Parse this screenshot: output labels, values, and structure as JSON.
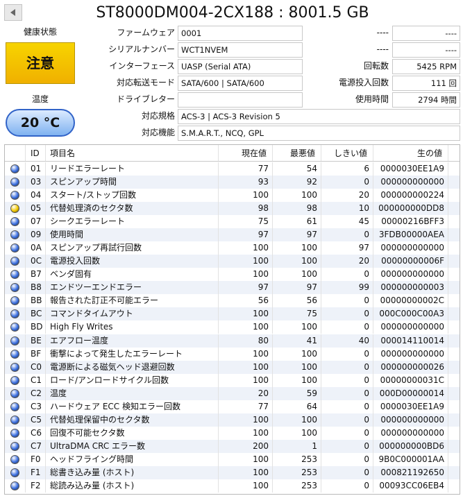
{
  "title": "ST8000DM004-2CX188 : 8001.5 GB",
  "health": {
    "label": "健康状態",
    "status": "注意",
    "color": "#f7d400"
  },
  "temperature": {
    "label": "温度",
    "value": "20 °C",
    "color": "#7fb2f0"
  },
  "info": [
    {
      "label": "ファームウェア",
      "value": "0001"
    },
    {
      "label": "シリアルナンバー",
      "value": "WCT1NVEM"
    },
    {
      "label": "インターフェース",
      "value": "UASP (Serial ATA)"
    },
    {
      "label": "対応転送モード",
      "value": "SATA/600 | SATA/600"
    },
    {
      "label": "ドライブレター"
    },
    {
      "label": "対応規格",
      "value": "ACS-3 | ACS-3 Revision 5"
    },
    {
      "label": "対応機能",
      "value": "S.M.A.R.T., NCQ, GPL"
    }
  ],
  "right_info": [
    {
      "label": "----",
      "value": "----"
    },
    {
      "label": "----",
      "value": "----"
    },
    {
      "label": "回転数",
      "value": "5425 RPM"
    },
    {
      "label": "電源投入回数",
      "value": "111 回"
    },
    {
      "label": "使用時間",
      "value": "2794 時間"
    }
  ],
  "table": {
    "headers": {
      "id": "ID",
      "name": "項目名",
      "current": "現在値",
      "worst": "最悪値",
      "threshold": "しきい値",
      "raw": "生の値"
    },
    "rows": [
      {
        "color": "#3b6fe0",
        "id": "01",
        "name": "リードエラーレート",
        "current": 77,
        "worst": 54,
        "threshold": 6,
        "raw": "0000030EE1A9"
      },
      {
        "color": "#3b6fe0",
        "id": "03",
        "name": "スピンアップ時間",
        "current": 93,
        "worst": 92,
        "threshold": 0,
        "raw": "000000000000"
      },
      {
        "color": "#3b6fe0",
        "id": "04",
        "name": "スタート/ストップ回数",
        "current": 100,
        "worst": 100,
        "threshold": 20,
        "raw": "000000000224"
      },
      {
        "color": "#f2c800",
        "id": "05",
        "name": "代替処理済のセクタ数",
        "current": 98,
        "worst": 98,
        "threshold": 10,
        "raw": "000000000DD8"
      },
      {
        "color": "#3b6fe0",
        "id": "07",
        "name": "シークエラーレート",
        "current": 75,
        "worst": 61,
        "threshold": 45,
        "raw": "00000216BFF3"
      },
      {
        "color": "#3b6fe0",
        "id": "09",
        "name": "使用時間",
        "current": 97,
        "worst": 97,
        "threshold": 0,
        "raw": "3FDB00000AEA"
      },
      {
        "color": "#3b6fe0",
        "id": "0A",
        "name": "スピンアップ再試行回数",
        "current": 100,
        "worst": 100,
        "threshold": 97,
        "raw": "000000000000"
      },
      {
        "color": "#3b6fe0",
        "id": "0C",
        "name": "電源投入回数",
        "current": 100,
        "worst": 100,
        "threshold": 20,
        "raw": "00000000006F"
      },
      {
        "color": "#3b6fe0",
        "id": "B7",
        "name": "ベンダ固有",
        "current": 100,
        "worst": 100,
        "threshold": 0,
        "raw": "000000000000"
      },
      {
        "color": "#3b6fe0",
        "id": "B8",
        "name": "エンドツーエンドエラー",
        "current": 97,
        "worst": 97,
        "threshold": 99,
        "raw": "000000000003"
      },
      {
        "color": "#3b6fe0",
        "id": "BB",
        "name": "報告された訂正不可能エラー",
        "current": 56,
        "worst": 56,
        "threshold": 0,
        "raw": "00000000002C"
      },
      {
        "color": "#3b6fe0",
        "id": "BC",
        "name": "コマンドタイムアウト",
        "current": 100,
        "worst": 75,
        "threshold": 0,
        "raw": "000C000C00A3"
      },
      {
        "color": "#3b6fe0",
        "id": "BD",
        "name": "High Fly Writes",
        "current": 100,
        "worst": 100,
        "threshold": 0,
        "raw": "000000000000"
      },
      {
        "color": "#3b6fe0",
        "id": "BE",
        "name": "エアフロー温度",
        "current": 80,
        "worst": 41,
        "threshold": 40,
        "raw": "000014110014"
      },
      {
        "color": "#3b6fe0",
        "id": "BF",
        "name": "衝撃によって発生したエラーレート",
        "current": 100,
        "worst": 100,
        "threshold": 0,
        "raw": "000000000000"
      },
      {
        "color": "#3b6fe0",
        "id": "C0",
        "name": "電源断による磁気ヘッド退避回数",
        "current": 100,
        "worst": 100,
        "threshold": 0,
        "raw": "000000000026"
      },
      {
        "color": "#3b6fe0",
        "id": "C1",
        "name": "ロード/アンロードサイクル回数",
        "current": 100,
        "worst": 100,
        "threshold": 0,
        "raw": "00000000031C"
      },
      {
        "color": "#3b6fe0",
        "id": "C2",
        "name": "温度",
        "current": 20,
        "worst": 59,
        "threshold": 0,
        "raw": "000D00000014"
      },
      {
        "color": "#3b6fe0",
        "id": "C3",
        "name": "ハードウェア ECC 検知エラー回数",
        "current": 77,
        "worst": 64,
        "threshold": 0,
        "raw": "0000030EE1A9"
      },
      {
        "color": "#3b6fe0",
        "id": "C5",
        "name": "代替処理保留中のセクタ数",
        "current": 100,
        "worst": 100,
        "threshold": 0,
        "raw": "000000000000"
      },
      {
        "color": "#3b6fe0",
        "id": "C6",
        "name": "回復不可能セクタ数",
        "current": 100,
        "worst": 100,
        "threshold": 0,
        "raw": "000000000000"
      },
      {
        "color": "#3b6fe0",
        "id": "C7",
        "name": "UltraDMA CRC エラー数",
        "current": 200,
        "worst": 1,
        "threshold": 0,
        "raw": "000000000BD6"
      },
      {
        "color": "#3b6fe0",
        "id": "F0",
        "name": "ヘッドフライング時間",
        "current": 100,
        "worst": 253,
        "threshold": 0,
        "raw": "9B0C000001AA"
      },
      {
        "color": "#3b6fe0",
        "id": "F1",
        "name": "総書き込み量 (ホスト)",
        "current": 100,
        "worst": 253,
        "threshold": 0,
        "raw": "000821192650"
      },
      {
        "color": "#3b6fe0",
        "id": "F2",
        "name": "総読み込み量 (ホスト)",
        "current": 100,
        "worst": 253,
        "threshold": 0,
        "raw": "00093CC06EB4"
      }
    ]
  }
}
